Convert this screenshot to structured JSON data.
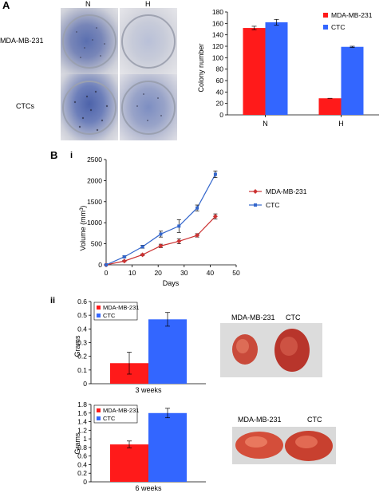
{
  "panels": {
    "A": {
      "letter": "A",
      "plate_cols": [
        "N",
        "H"
      ],
      "plate_rows": [
        "MDA-MB-231",
        "CTCs"
      ]
    },
    "B": {
      "letter": "B",
      "sub_i": "i",
      "sub_ii": "ii",
      "photo_3w": {
        "label_left": "MDA-MB-231",
        "label_right": "CTC"
      },
      "photo_6w": {
        "label_left": "MDA-MB-231",
        "label_right": "CTC"
      }
    }
  },
  "colors": {
    "red": "#ff1a1a",
    "blue": "#3366ff",
    "line_red": "#cc3333",
    "line_blue": "#3366cc"
  },
  "chart_data": [
    {
      "type": "bar",
      "categories": [
        "N",
        "H"
      ],
      "series": [
        {
          "name": "MDA-MB-231",
          "values": [
            152,
            29
          ],
          "errors": [
            3,
            0
          ]
        },
        {
          "name": "CTC",
          "values": [
            162,
            119
          ],
          "errors": [
            5,
            1
          ]
        }
      ],
      "xlabel": "",
      "ylabel": "Colony number",
      "ylim": [
        0,
        180
      ],
      "yticks": [
        "0",
        "20",
        "40",
        "60",
        "80",
        "100",
        "120",
        "140",
        "160",
        "180"
      ],
      "legend": "top-right"
    },
    {
      "type": "line",
      "x": [
        0,
        7,
        14,
        21,
        28,
        35,
        42
      ],
      "series": [
        {
          "name": "MDA-MB-231",
          "values": [
            0,
            90,
            240,
            450,
            560,
            700,
            1150
          ],
          "errors": [
            0,
            15,
            20,
            40,
            60,
            40,
            60
          ]
        },
        {
          "name": "CTC",
          "values": [
            0,
            190,
            430,
            730,
            920,
            1350,
            2150
          ],
          "errors": [
            0,
            20,
            35,
            70,
            150,
            70,
            80
          ]
        }
      ],
      "xlabel": "Days",
      "ylabel_main": "Volume (mm",
      "ylabel_sup": "3",
      "ylabel_end": ")",
      "xlim": [
        0,
        50
      ],
      "ylim": [
        0,
        2500
      ],
      "xticks": [
        "0",
        "10",
        "20",
        "30",
        "40",
        "50"
      ],
      "yticks": [
        "0",
        "500",
        "1000",
        "1500",
        "2000",
        "2500"
      ],
      "legend": "right"
    },
    {
      "type": "bar",
      "categories": [
        "3 weeks"
      ],
      "series": [
        {
          "name": "MDA-MB-231",
          "values": [
            0.15
          ],
          "errors": [
            0.08
          ]
        },
        {
          "name": "CTC",
          "values": [
            0.47
          ],
          "errors": [
            0.05
          ]
        }
      ],
      "xlabel": "3 weeks",
      "ylabel": "Grams",
      "ylim": [
        0,
        0.6
      ],
      "yticks": [
        "0",
        "0.1",
        "0.2",
        "0.3",
        "0.4",
        "0.5",
        "0.6"
      ],
      "legend": "top-left"
    },
    {
      "type": "bar",
      "categories": [
        "6 weeks"
      ],
      "series": [
        {
          "name": "MDA-MB-231",
          "values": [
            0.87
          ],
          "errors": [
            0.08
          ]
        },
        {
          "name": "CTC",
          "values": [
            1.6
          ],
          "errors": [
            0.11
          ]
        }
      ],
      "xlabel": "6 weeks",
      "ylabel": "Grams",
      "ylim": [
        0,
        1.8
      ],
      "yticks": [
        "0",
        "0.2",
        "0.4",
        "0.6",
        "0.8",
        "1",
        "1.2",
        "1.4",
        "1.6",
        "1.8"
      ],
      "legend": "top-left"
    }
  ]
}
